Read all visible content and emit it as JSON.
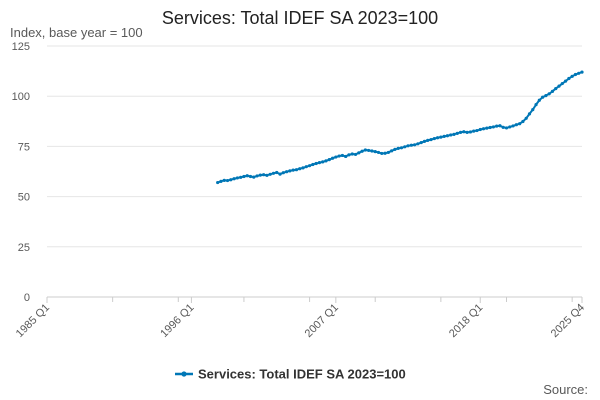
{
  "chart_data": {
    "type": "line",
    "title": "Services: Total IDEF SA 2023=100",
    "ylabel": "Index, base year = 100",
    "xlabel": "",
    "x_tick_labels": [
      "1985 Q1",
      "1996 Q1",
      "2007 Q1",
      "2018 Q1",
      "2025 Q4"
    ],
    "y_tick_labels": [
      "0",
      "25",
      "50",
      "75",
      "100",
      "125"
    ],
    "ylim": [
      0,
      125
    ],
    "xlim": [
      "1985 Q1",
      "2025 Q4"
    ],
    "grid": "horizontal",
    "legend_position": "bottom",
    "series": [
      {
        "name": "Services: Total IDEF SA 2023=100",
        "color": "#0077b6",
        "points": [
          [
            "1998 Q1",
            57.0
          ],
          [
            "1998 Q2",
            57.6
          ],
          [
            "1998 Q3",
            58.1
          ],
          [
            "1998 Q4",
            58.0
          ],
          [
            "1999 Q1",
            58.4
          ],
          [
            "1999 Q2",
            58.9
          ],
          [
            "1999 Q3",
            59.3
          ],
          [
            "1999 Q4",
            59.6
          ],
          [
            "2000 Q1",
            60.0
          ],
          [
            "2000 Q2",
            60.4
          ],
          [
            "2000 Q3",
            60.0
          ],
          [
            "2000 Q4",
            59.7
          ],
          [
            "2001 Q1",
            60.3
          ],
          [
            "2001 Q2",
            60.7
          ],
          [
            "2001 Q3",
            60.9
          ],
          [
            "2001 Q4",
            60.6
          ],
          [
            "2002 Q1",
            61.1
          ],
          [
            "2002 Q2",
            61.6
          ],
          [
            "2002 Q3",
            62.0
          ],
          [
            "2002 Q4",
            61.2
          ],
          [
            "2003 Q1",
            61.9
          ],
          [
            "2003 Q2",
            62.4
          ],
          [
            "2003 Q3",
            62.8
          ],
          [
            "2003 Q4",
            63.2
          ],
          [
            "2004 Q1",
            63.4
          ],
          [
            "2004 Q2",
            63.9
          ],
          [
            "2004 Q3",
            64.3
          ],
          [
            "2004 Q4",
            64.9
          ],
          [
            "2005 Q1",
            65.4
          ],
          [
            "2005 Q2",
            66.0
          ],
          [
            "2005 Q3",
            66.5
          ],
          [
            "2005 Q4",
            66.9
          ],
          [
            "2006 Q1",
            67.3
          ],
          [
            "2006 Q2",
            67.8
          ],
          [
            "2006 Q3",
            68.4
          ],
          [
            "2006 Q4",
            69.1
          ],
          [
            "2007 Q1",
            69.7
          ],
          [
            "2007 Q2",
            70.2
          ],
          [
            "2007 Q3",
            70.5
          ],
          [
            "2007 Q4",
            70.0
          ],
          [
            "2008 Q1",
            70.8
          ],
          [
            "2008 Q2",
            71.2
          ],
          [
            "2008 Q3",
            71.0
          ],
          [
            "2008 Q4",
            71.8
          ],
          [
            "2009 Q1",
            72.6
          ],
          [
            "2009 Q2",
            73.2
          ],
          [
            "2009 Q3",
            73.0
          ],
          [
            "2009 Q4",
            72.7
          ],
          [
            "2010 Q1",
            72.4
          ],
          [
            "2010 Q2",
            72.0
          ],
          [
            "2010 Q3",
            71.5
          ],
          [
            "2010 Q4",
            71.6
          ],
          [
            "2011 Q1",
            72.0
          ],
          [
            "2011 Q2",
            72.8
          ],
          [
            "2011 Q3",
            73.5
          ],
          [
            "2011 Q4",
            74.0
          ],
          [
            "2012 Q1",
            74.3
          ],
          [
            "2012 Q2",
            74.8
          ],
          [
            "2012 Q3",
            75.3
          ],
          [
            "2012 Q4",
            75.6
          ],
          [
            "2013 Q1",
            75.8
          ],
          [
            "2013 Q2",
            76.3
          ],
          [
            "2013 Q3",
            76.9
          ],
          [
            "2013 Q4",
            77.5
          ],
          [
            "2014 Q1",
            78.0
          ],
          [
            "2014 Q2",
            78.4
          ],
          [
            "2014 Q3",
            78.9
          ],
          [
            "2014 Q4",
            79.3
          ],
          [
            "2015 Q1",
            79.6
          ],
          [
            "2015 Q2",
            80.0
          ],
          [
            "2015 Q3",
            80.3
          ],
          [
            "2015 Q4",
            80.7
          ],
          [
            "2016 Q1",
            81.0
          ],
          [
            "2016 Q2",
            81.5
          ],
          [
            "2016 Q3",
            82.0
          ],
          [
            "2016 Q4",
            82.3
          ],
          [
            "2017 Q1",
            82.0
          ],
          [
            "2017 Q2",
            82.2
          ],
          [
            "2017 Q3",
            82.6
          ],
          [
            "2017 Q4",
            82.9
          ],
          [
            "2018 Q1",
            83.4
          ],
          [
            "2018 Q2",
            83.8
          ],
          [
            "2018 Q3",
            84.1
          ],
          [
            "2018 Q4",
            84.4
          ],
          [
            "2019 Q1",
            84.7
          ],
          [
            "2019 Q2",
            85.1
          ],
          [
            "2019 Q3",
            85.3
          ],
          [
            "2019 Q4",
            84.5
          ],
          [
            "2020 Q1",
            84.2
          ],
          [
            "2020 Q2",
            84.7
          ],
          [
            "2020 Q3",
            85.2
          ],
          [
            "2020 Q4",
            85.8
          ],
          [
            "2021 Q1",
            86.3
          ],
          [
            "2021 Q2",
            87.4
          ],
          [
            "2021 Q3",
            89.0
          ],
          [
            "2021 Q4",
            91.2
          ],
          [
            "2022 Q1",
            93.3
          ],
          [
            "2022 Q2",
            95.8
          ],
          [
            "2022 Q3",
            98.0
          ],
          [
            "2022 Q4",
            99.5
          ],
          [
            "2023 Q1",
            100.3
          ],
          [
            "2023 Q2",
            101.2
          ],
          [
            "2023 Q3",
            102.4
          ],
          [
            "2023 Q4",
            103.8
          ],
          [
            "2024 Q1",
            105.0
          ],
          [
            "2024 Q2",
            106.3
          ],
          [
            "2024 Q3",
            107.5
          ],
          [
            "2024 Q4",
            108.8
          ],
          [
            "2025 Q1",
            109.9
          ],
          [
            "2025 Q2",
            110.8
          ],
          [
            "2025 Q3",
            111.4
          ],
          [
            "2025 Q4",
            112.0
          ]
        ]
      }
    ]
  },
  "source_label": "Source:"
}
